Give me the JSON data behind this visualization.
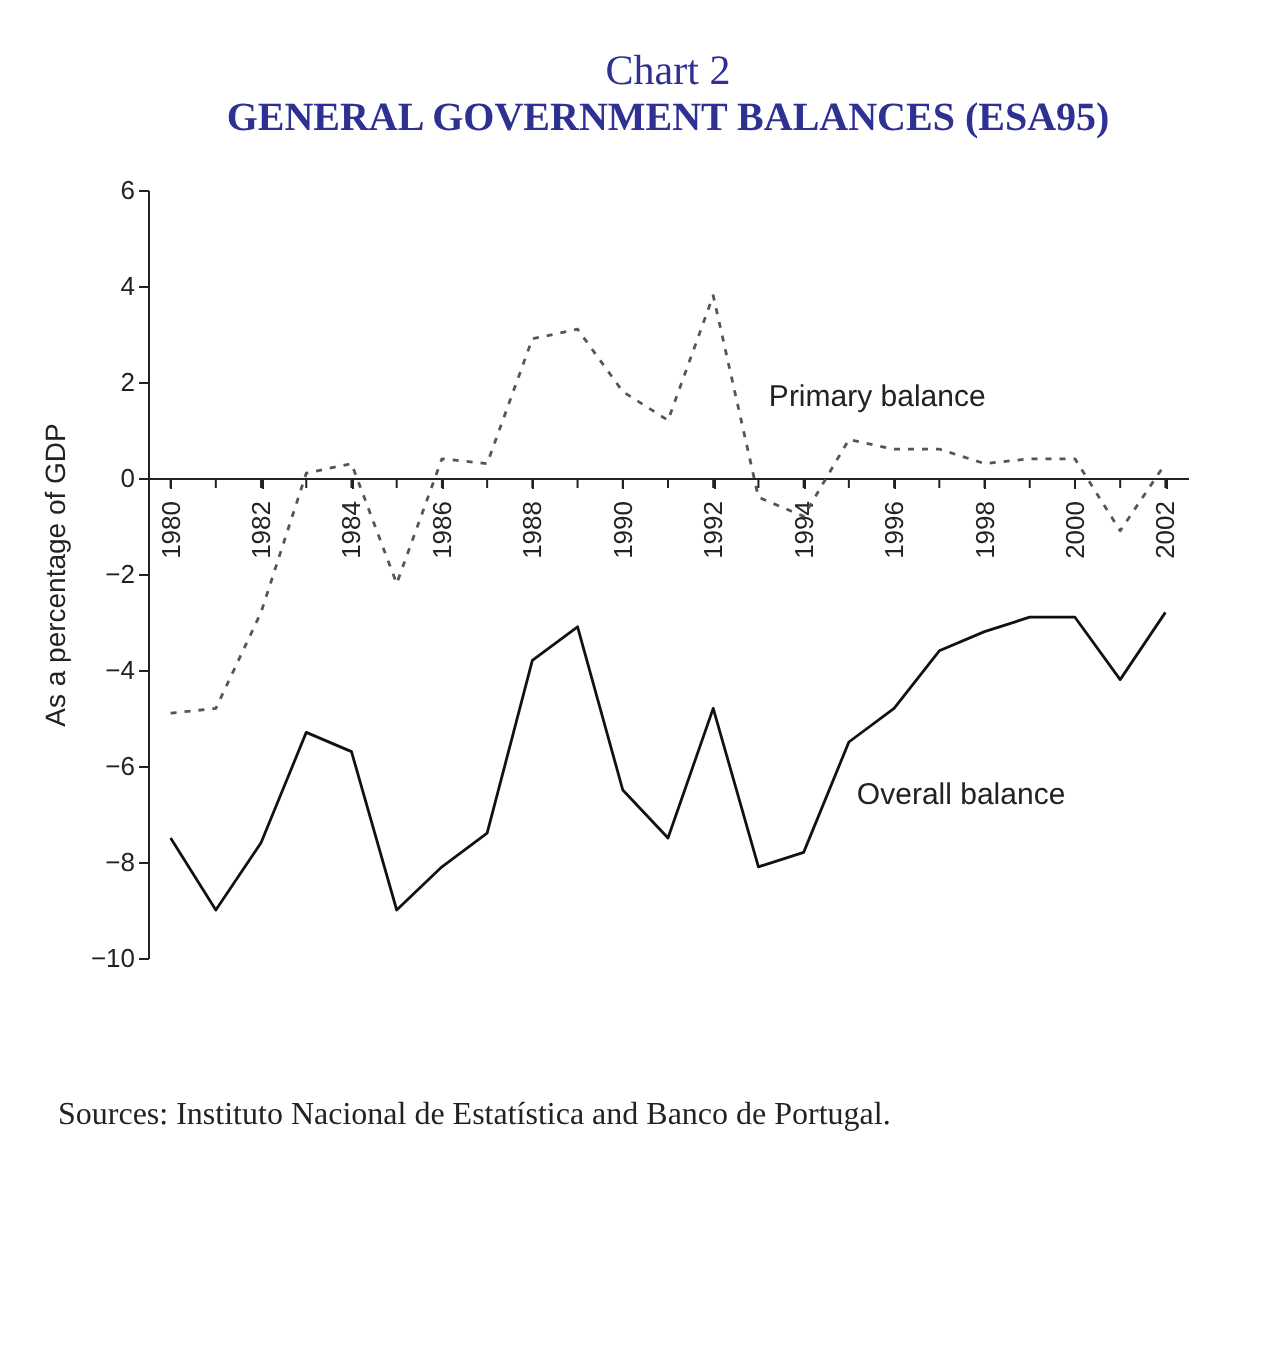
{
  "chart_data": {
    "type": "line",
    "title": "Chart 2",
    "subtitle": "GENERAL GOVERNMENT BALANCES (ESA95)",
    "ylabel": "As a percentage of GDP",
    "x": [
      1980,
      1981,
      1982,
      1983,
      1984,
      1985,
      1986,
      1987,
      1988,
      1989,
      1990,
      1991,
      1992,
      1993,
      1994,
      1995,
      1996,
      1997,
      1998,
      1999,
      2000,
      2001,
      2002
    ],
    "series": [
      {
        "name": "Primary balance",
        "color": "#555555",
        "line_style": "dashed",
        "values": [
          -4.9,
          -4.8,
          -2.8,
          0.1,
          0.3,
          -2.2,
          0.4,
          0.3,
          2.9,
          3.1,
          1.8,
          1.2,
          3.8,
          -0.4,
          -0.8,
          0.8,
          0.6,
          0.6,
          0.3,
          0.4,
          0.4,
          -1.1,
          0.3
        ]
      },
      {
        "name": "Overall balance",
        "color": "#111111",
        "line_style": "solid",
        "values": [
          -7.5,
          -9.0,
          -7.6,
          -5.3,
          -5.7,
          -9.0,
          -8.1,
          -7.4,
          -3.8,
          -3.1,
          -6.5,
          -7.5,
          -4.8,
          -8.1,
          -7.8,
          -5.5,
          -4.8,
          -3.6,
          -3.2,
          -2.9,
          -2.9,
          -4.2,
          -2.8
        ]
      }
    ],
    "xlim": [
      1979.5,
      2002.5
    ],
    "xticks": [
      1980,
      {
        "value": 1981,
        "label": null
      },
      1982,
      {
        "value": 1983,
        "label": null
      },
      1984,
      {
        "value": 1985,
        "label": null
      },
      1986,
      {
        "value": 1987,
        "label": null
      },
      1988,
      {
        "value": 1989,
        "label": null
      },
      1990,
      {
        "value": 1991,
        "label": null
      },
      1992,
      {
        "value": 1993,
        "label": null
      },
      1994,
      {
        "value": 1995,
        "label": null
      },
      1996,
      {
        "value": 1997,
        "label": null
      },
      1998,
      {
        "value": 1999,
        "label": null
      },
      2000,
      {
        "value": 2001,
        "label": null
      },
      2002
    ],
    "ylim": [
      -10,
      6
    ],
    "yticks": [
      -10,
      -8,
      -6,
      -4,
      -2,
      0,
      2,
      4,
      6
    ],
    "grid": false,
    "legend": false,
    "marker": "none",
    "annotations": [
      "Sources: Instituto Nacional de Estatística and Banco de Portugal."
    ]
  }
}
